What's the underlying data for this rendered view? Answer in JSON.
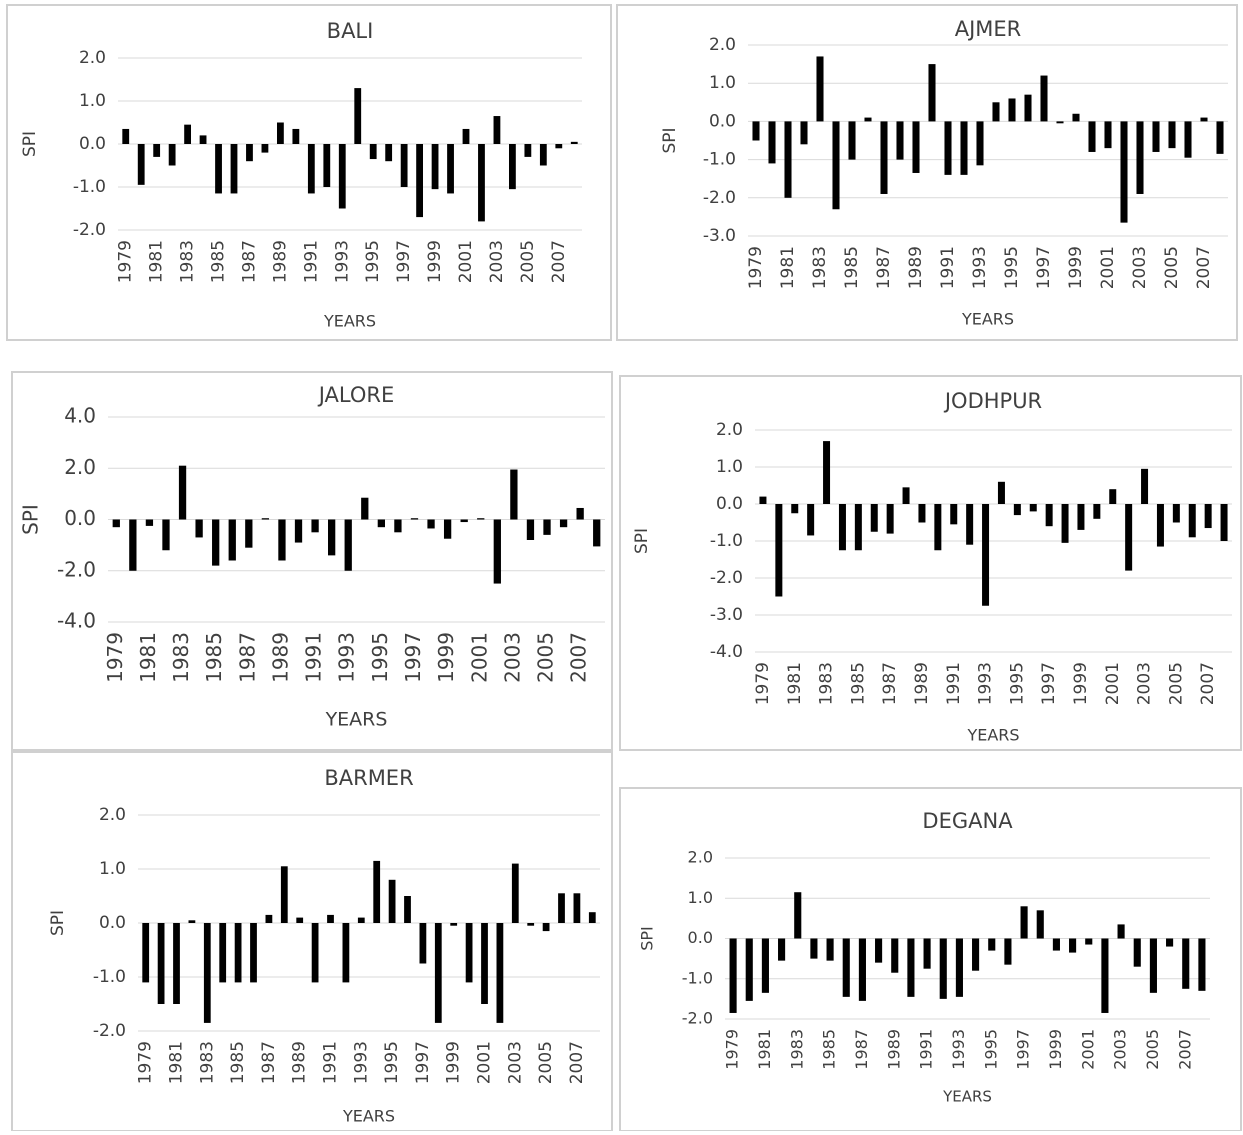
{
  "chart_data": [
    {
      "type": "bar",
      "title": "BALI",
      "y_label": "SPI",
      "x_label": "YEARS",
      "color": "#000000",
      "grid": true,
      "categories": [
        "1979",
        null,
        "1981",
        null,
        "1983",
        null,
        "1985",
        null,
        "1987",
        null,
        "1989",
        null,
        "1991",
        null,
        "1993",
        null,
        "1995",
        null,
        "1997",
        null,
        "1999",
        null,
        "2001",
        null,
        "2003",
        null,
        "2005",
        null,
        "2007",
        null
      ],
      "values": [
        0.35,
        -0.95,
        -0.3,
        -0.5,
        0.45,
        0.2,
        -1.15,
        -1.15,
        -0.4,
        -0.2,
        0.5,
        0.35,
        -1.15,
        -1.0,
        -1.5,
        1.3,
        -0.35,
        -0.4,
        -1.0,
        -1.7,
        -1.05,
        -1.15,
        0.35,
        -1.8,
        0.65,
        -1.05,
        -0.3,
        -0.5,
        -0.1,
        0.05
      ],
      "ylim": [
        -2,
        2
      ],
      "yticks": [
        {
          "value": -2,
          "label": "-2.0"
        },
        {
          "value": -1,
          "label": "-1.0"
        },
        {
          "value": 0,
          "label": "0.0"
        },
        {
          "value": 1,
          "label": "1.0"
        },
        {
          "value": 2,
          "label": "2.0"
        }
      ]
    },
    {
      "type": "bar",
      "title": "AJMER",
      "y_label": "SPI",
      "x_label": "YEARS",
      "color": "#000000",
      "grid": true,
      "categories": [
        "1979",
        null,
        "1981",
        null,
        "1983",
        null,
        "1985",
        null,
        "1987",
        null,
        "1989",
        null,
        "1991",
        null,
        "1993",
        null,
        "1995",
        null,
        "1997",
        null,
        "1999",
        null,
        "2001",
        null,
        "2003",
        null,
        "2005",
        null,
        "2007",
        null
      ],
      "values": [
        -0.5,
        -1.1,
        -2.0,
        -0.6,
        1.7,
        -2.3,
        -1.0,
        0.1,
        -1.9,
        -1.0,
        -1.35,
        1.5,
        -1.4,
        -1.4,
        -1.15,
        0.5,
        0.6,
        0.7,
        1.2,
        -0.05,
        0.2,
        -0.8,
        -0.7,
        -2.65,
        -1.9,
        -0.8,
        -0.7,
        -0.95,
        0.1,
        -0.85
      ],
      "ylim": [
        -3,
        2
      ],
      "yticks": [
        {
          "value": -3,
          "label": "-3.0"
        },
        {
          "value": -2,
          "label": "-2.0"
        },
        {
          "value": -1,
          "label": "-1.0"
        },
        {
          "value": 0,
          "label": "0.0"
        },
        {
          "value": 1,
          "label": "1.0"
        },
        {
          "value": 2,
          "label": "2.0"
        }
      ]
    },
    {
      "type": "bar",
      "title": "JALORE",
      "y_label": "SPI",
      "x_label": "YEARS",
      "color": "#000000",
      "grid": true,
      "categories": [
        "1979",
        null,
        "1981",
        null,
        "1983",
        null,
        "1985",
        null,
        "1987",
        null,
        "1989",
        null,
        "1991",
        null,
        "1993",
        null,
        "1995",
        null,
        "1997",
        null,
        "1999",
        null,
        "2001",
        null,
        "2003",
        null,
        "2005",
        null,
        "2007",
        null
      ],
      "values": [
        -0.3,
        -2.0,
        -0.25,
        -1.2,
        2.1,
        -0.7,
        -1.8,
        -1.6,
        -1.1,
        0.05,
        -1.6,
        -0.9,
        -0.5,
        -1.4,
        -2.0,
        0.85,
        -0.3,
        -0.5,
        0.05,
        -0.35,
        -0.75,
        -0.1,
        0.05,
        -2.5,
        1.95,
        -0.8,
        -0.6,
        -0.3,
        0.45,
        -1.05
      ],
      "ylim": [
        -4,
        4
      ],
      "yticks": [
        {
          "value": -4,
          "label": "-4.0"
        },
        {
          "value": -2,
          "label": "-2.0"
        },
        {
          "value": 0,
          "label": "0.0"
        },
        {
          "value": 2,
          "label": "2.0"
        },
        {
          "value": 4,
          "label": "4.0"
        }
      ]
    },
    {
      "type": "bar",
      "title": "JODHPUR",
      "y_label": "SPI",
      "x_label": "YEARS",
      "color": "#000000",
      "grid": true,
      "categories": [
        "1979",
        null,
        "1981",
        null,
        "1983",
        null,
        "1985",
        null,
        "1987",
        null,
        "1989",
        null,
        "1991",
        null,
        "1993",
        null,
        "1995",
        null,
        "1997",
        null,
        "1999",
        null,
        "2001",
        null,
        "2003",
        null,
        "2005",
        null,
        "2007",
        null
      ],
      "values": [
        0.2,
        -2.5,
        -0.25,
        -0.85,
        1.7,
        -1.25,
        -1.25,
        -0.75,
        -0.8,
        0.45,
        -0.5,
        -1.25,
        -0.55,
        -1.1,
        -2.75,
        0.6,
        -0.3,
        -0.2,
        -0.6,
        -1.05,
        -0.7,
        -0.4,
        0.4,
        -1.8,
        0.95,
        -1.15,
        -0.5,
        -0.9,
        -0.65,
        -1.0
      ],
      "ylim": [
        -4,
        2
      ],
      "yticks": [
        {
          "value": -4,
          "label": "-4.0"
        },
        {
          "value": -3,
          "label": "-3.0"
        },
        {
          "value": -2,
          "label": "-2.0"
        },
        {
          "value": -1,
          "label": "-1.0"
        },
        {
          "value": 0,
          "label": "0.0"
        },
        {
          "value": 1,
          "label": "1.0"
        },
        {
          "value": 2,
          "label": "2.0"
        }
      ]
    },
    {
      "type": "bar",
      "title": "BARMER",
      "y_label": "SPI",
      "x_label": "YEARS",
      "color": "#000000",
      "grid": true,
      "categories": [
        "1979",
        null,
        "1981",
        null,
        "1983",
        null,
        "1985",
        null,
        "1987",
        null,
        "1989",
        null,
        "1991",
        null,
        "1993",
        null,
        "1995",
        null,
        "1997",
        null,
        "1999",
        null,
        "2001",
        null,
        "2003",
        null,
        "2005",
        null,
        "2007",
        null
      ],
      "values": [
        -1.1,
        -1.5,
        -1.5,
        0.05,
        -1.85,
        -1.1,
        -1.1,
        -1.1,
        0.15,
        1.05,
        0.1,
        -1.1,
        0.15,
        -1.1,
        0.1,
        1.15,
        0.8,
        0.5,
        -0.75,
        -1.85,
        -0.05,
        -1.1,
        -1.5,
        -1.85,
        1.1,
        -0.05,
        -0.15,
        0.55,
        0.55,
        0.2
      ],
      "ylim": [
        -2,
        2
      ],
      "yticks": [
        {
          "value": -2,
          "label": "-2.0"
        },
        {
          "value": -1,
          "label": "-1.0"
        },
        {
          "value": 0,
          "label": "0.0"
        },
        {
          "value": 1,
          "label": "1.0"
        },
        {
          "value": 2,
          "label": "2.0"
        }
      ]
    },
    {
      "type": "bar",
      "title": "DEGANA",
      "y_label": "SPI",
      "x_label": "YEARS",
      "color": "#000000",
      "grid": true,
      "categories": [
        "1979",
        null,
        "1981",
        null,
        "1983",
        null,
        "1985",
        null,
        "1987",
        null,
        "1989",
        null,
        "1991",
        null,
        "1993",
        null,
        "1995",
        null,
        "1997",
        null,
        "1999",
        null,
        "2001",
        null,
        "2003",
        null,
        "2005",
        null,
        "2007",
        null
      ],
      "values": [
        -1.85,
        -1.55,
        -1.35,
        -0.55,
        1.15,
        -0.5,
        -0.55,
        -1.45,
        -1.55,
        -0.6,
        -0.85,
        -1.45,
        -0.75,
        -1.5,
        -1.45,
        -0.8,
        -0.3,
        -0.65,
        0.8,
        0.7,
        -0.3,
        -0.35,
        -0.15,
        -1.85,
        0.35,
        -0.7,
        -1.35,
        -0.2,
        -1.25,
        -1.3
      ],
      "ylim": [
        -2,
        2
      ],
      "yticks": [
        {
          "value": -2,
          "label": "-2.0"
        },
        {
          "value": -1,
          "label": "-1.0"
        },
        {
          "value": 0,
          "label": "0.0"
        },
        {
          "value": 1,
          "label": "1.0"
        },
        {
          "value": 2,
          "label": "2.0"
        }
      ]
    }
  ]
}
